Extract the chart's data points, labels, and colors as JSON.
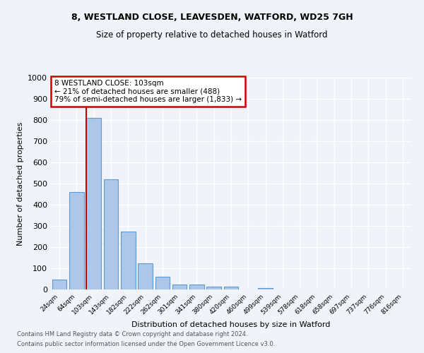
{
  "title1": "8, WESTLAND CLOSE, LEAVESDEN, WATFORD, WD25 7GH",
  "title2": "Size of property relative to detached houses in Watford",
  "xlabel": "Distribution of detached houses by size in Watford",
  "ylabel": "Number of detached properties",
  "categories": [
    "24sqm",
    "64sqm",
    "103sqm",
    "143sqm",
    "182sqm",
    "222sqm",
    "262sqm",
    "301sqm",
    "341sqm",
    "380sqm",
    "420sqm",
    "460sqm",
    "499sqm",
    "539sqm",
    "578sqm",
    "618sqm",
    "658sqm",
    "697sqm",
    "737sqm",
    "776sqm",
    "816sqm"
  ],
  "values": [
    46,
    460,
    810,
    520,
    275,
    125,
    60,
    25,
    25,
    12,
    12,
    0,
    8,
    0,
    0,
    0,
    0,
    0,
    0,
    0,
    0
  ],
  "bar_color": "#aec6e8",
  "bar_edge_color": "#5b9bd5",
  "highlight_index": 2,
  "highlight_line_color": "#cc0000",
  "annotation_text": "8 WESTLAND CLOSE: 103sqm\n← 21% of detached houses are smaller (488)\n79% of semi-detached houses are larger (1,833) →",
  "annotation_box_color": "#cc0000",
  "ylim": [
    0,
    1000
  ],
  "yticks": [
    0,
    100,
    200,
    300,
    400,
    500,
    600,
    700,
    800,
    900,
    1000
  ],
  "footer1": "Contains HM Land Registry data © Crown copyright and database right 2024.",
  "footer2": "Contains public sector information licensed under the Open Government Licence v3.0.",
  "bg_color": "#f0f4fa",
  "grid_color": "#ffffff"
}
